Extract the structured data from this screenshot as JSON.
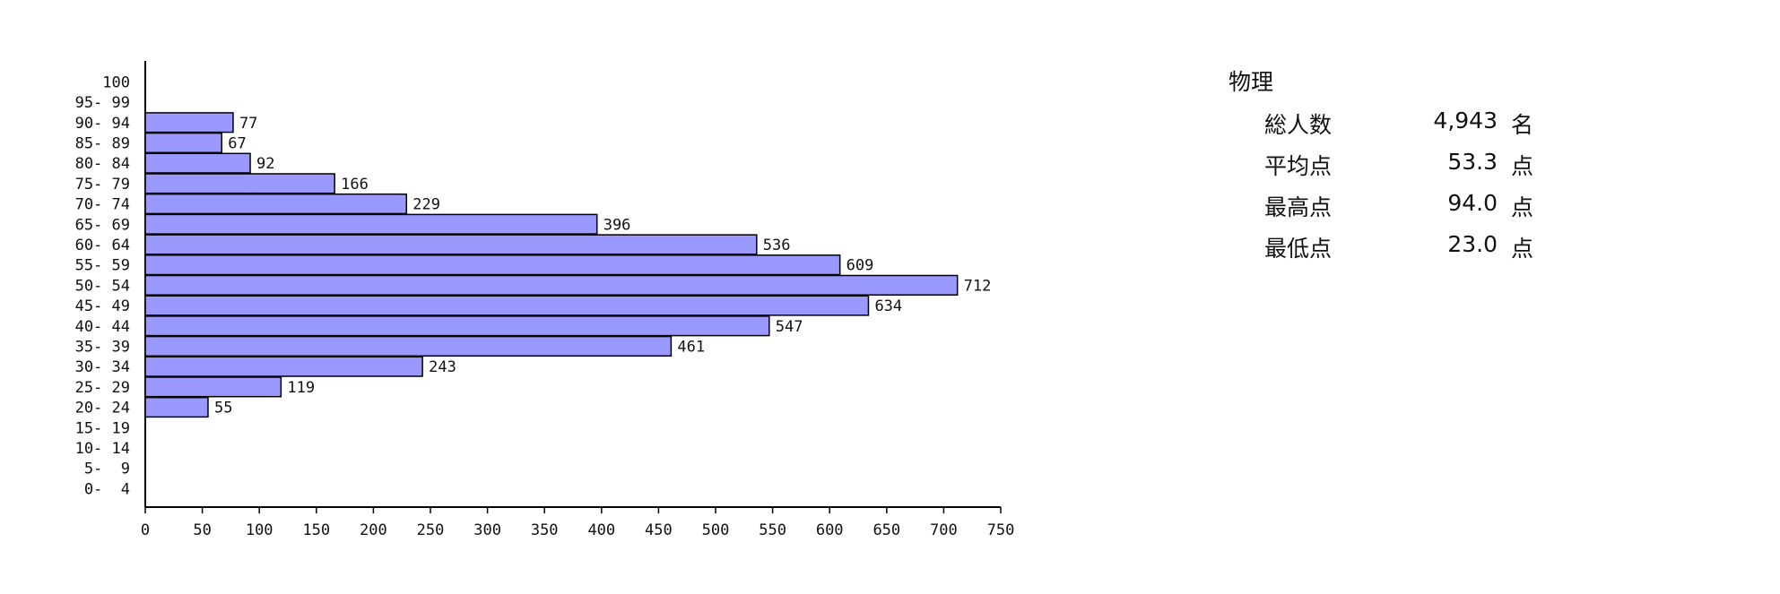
{
  "chart_data": {
    "type": "bar",
    "orientation": "horizontal",
    "categories": [
      "100",
      "95- 99",
      "90- 94",
      "85- 89",
      "80- 84",
      "75- 79",
      "70- 74",
      "65- 69",
      "60- 64",
      "55- 59",
      "50- 54",
      "45- 49",
      "40- 44",
      "35- 39",
      "30- 34",
      "25- 29",
      "20- 24",
      "15- 19",
      "10- 14",
      "5-  9",
      "0-  4"
    ],
    "values": [
      null,
      null,
      77,
      67,
      92,
      166,
      229,
      396,
      536,
      609,
      712,
      634,
      547,
      461,
      243,
      119,
      55,
      null,
      null,
      null,
      null
    ],
    "value_labels": [
      "",
      "",
      "77",
      "67",
      "92",
      "166",
      "229",
      "396",
      "536",
      "609",
      "712",
      "634",
      "547",
      "461",
      "243",
      "119",
      "55",
      "",
      "",
      "",
      ""
    ],
    "xlim": [
      0,
      750
    ],
    "xticks": [
      0,
      50,
      100,
      150,
      200,
      250,
      300,
      350,
      400,
      450,
      500,
      550,
      600,
      650,
      700,
      750
    ],
    "bar_color": "#9999ff",
    "grid": false
  },
  "stats": {
    "subject": "物理",
    "rows": [
      {
        "label": "総人数",
        "value": "4,943",
        "unit": "名"
      },
      {
        "label": "平均点",
        "value": "53.3",
        "unit": "点"
      },
      {
        "label": "最高点",
        "value": "94.0",
        "unit": "点"
      },
      {
        "label": "最低点",
        "value": "23.0",
        "unit": "点"
      }
    ]
  }
}
